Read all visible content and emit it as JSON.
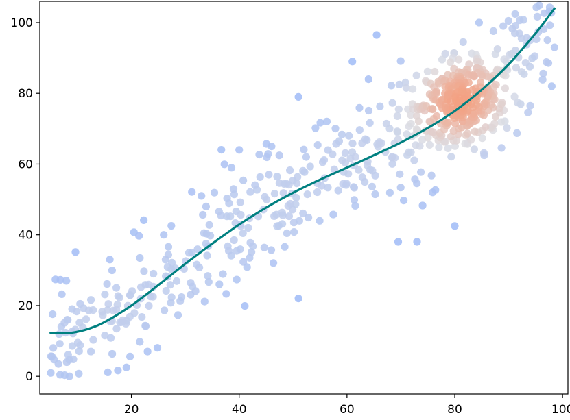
{
  "chart_data": {
    "type": "scatter",
    "title": "",
    "xlabel": "",
    "ylabel": "",
    "xlim": [
      3,
      101
    ],
    "ylim": [
      -5,
      106
    ],
    "xticks": [
      20,
      40,
      60,
      80,
      100
    ],
    "yticks": [
      0,
      20,
      40,
      60,
      80,
      100
    ],
    "grid": false,
    "colormap": {
      "low": "#9cb9f8",
      "mid": "#dcdde3",
      "high": "#f3a183"
    },
    "point_alpha": 0.85,
    "n_points": 700,
    "random_seed": 7,
    "clusters": [
      {
        "name": "trend",
        "count": 450,
        "x_range": [
          5,
          98
        ],
        "y_noise_sd": 8
      },
      {
        "name": "dense",
        "count": 250,
        "center": [
          81,
          78
        ],
        "sd": [
          4.5,
          6.5
        ]
      }
    ],
    "sample_points": [
      [
        8.5,
        0
      ],
      [
        5.5,
        8
      ],
      [
        8,
        4
      ],
      [
        7,
        14
      ],
      [
        9,
        19
      ],
      [
        12.5,
        7
      ],
      [
        16,
        33
      ],
      [
        23,
        7
      ],
      [
        26,
        40
      ],
      [
        33,
        51
      ],
      [
        40,
        64
      ],
      [
        46,
        65
      ],
      [
        51,
        22
      ],
      [
        51,
        79
      ],
      [
        61,
        89
      ],
      [
        64,
        84
      ],
      [
        65.5,
        96.5
      ],
      [
        69.5,
        38
      ],
      [
        73,
        38
      ],
      [
        80,
        42.5
      ],
      [
        84.5,
        100
      ],
      [
        89,
        99
      ],
      [
        94,
        76.5
      ],
      [
        98,
        82
      ],
      [
        98.5,
        93
      ]
    ],
    "fit_line": {
      "color": "#008080",
      "x_range": [
        5,
        98.5
      ],
      "points": [
        [
          5,
          12.3
        ],
        [
          8,
          12.2
        ],
        [
          10,
          12.6
        ],
        [
          12,
          13.4
        ],
        [
          15,
          15.3
        ],
        [
          20,
          20.0
        ],
        [
          25,
          25.8
        ],
        [
          30,
          31.8
        ],
        [
          35,
          37.5
        ],
        [
          40,
          42.9
        ],
        [
          45,
          47.7
        ],
        [
          50,
          51.9
        ],
        [
          55,
          55.6
        ],
        [
          60,
          59.0
        ],
        [
          65,
          62.5
        ],
        [
          70,
          66.1
        ],
        [
          75,
          70.2
        ],
        [
          80,
          75.0
        ],
        [
          85,
          81.0
        ],
        [
          90,
          88.2
        ],
        [
          95,
          97.0
        ],
        [
          98.5,
          104.0
        ]
      ]
    }
  }
}
